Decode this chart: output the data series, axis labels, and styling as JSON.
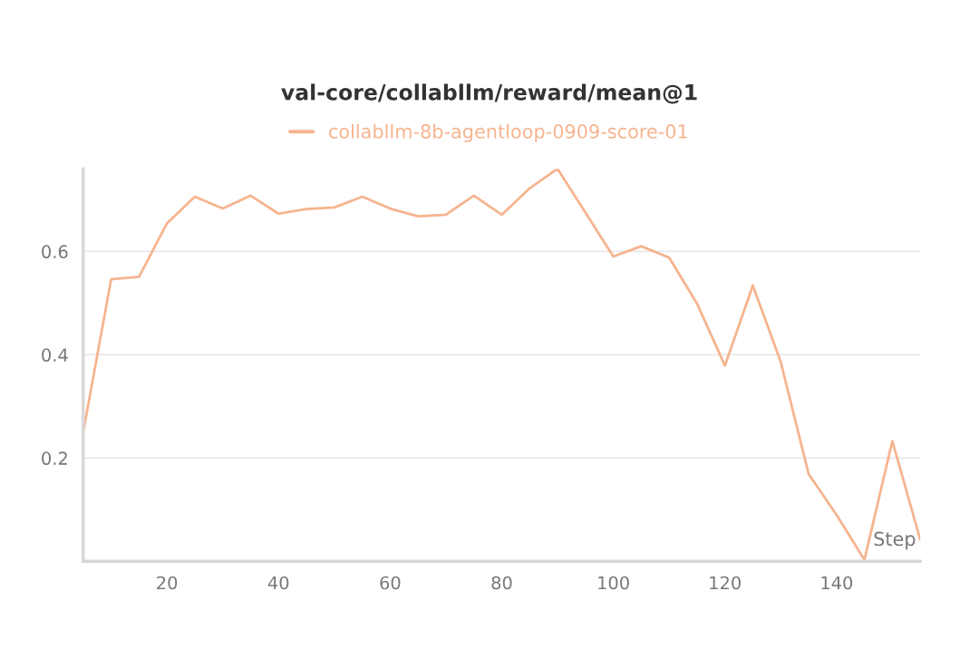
{
  "chart_data": {
    "type": "line",
    "title": "val-core/collabllm/reward/mean@1",
    "xlabel": "Step",
    "x": [
      5,
      10,
      15,
      20,
      25,
      30,
      35,
      40,
      45,
      50,
      55,
      60,
      65,
      70,
      75,
      80,
      85,
      90,
      95,
      100,
      105,
      110,
      115,
      120,
      125,
      130,
      135,
      140,
      145,
      150,
      155
    ],
    "series": [
      {
        "name": "collabllm-8b-agentloop-0909-score-01",
        "color": "#f6b48f",
        "values": [
          0.25,
          0.546,
          0.551,
          0.654,
          0.706,
          0.683,
          0.708,
          0.673,
          0.682,
          0.685,
          0.706,
          0.683,
          0.668,
          0.671,
          0.708,
          0.671,
          0.722,
          0.76,
          0.675,
          0.59,
          0.61,
          0.588,
          0.499,
          0.379,
          0.534,
          0.386,
          0.169,
          0.09,
          0.003,
          0.233,
          0.042
        ]
      }
    ],
    "xlim": [
      5,
      155
    ],
    "ylim": [
      0,
      0.76
    ],
    "xticks": [
      20,
      40,
      60,
      80,
      100,
      120,
      140
    ],
    "yticks": [
      0.2,
      0.4,
      0.6
    ],
    "grid": "y",
    "legend": "top",
    "marker": "none",
    "line_style": "solid"
  }
}
